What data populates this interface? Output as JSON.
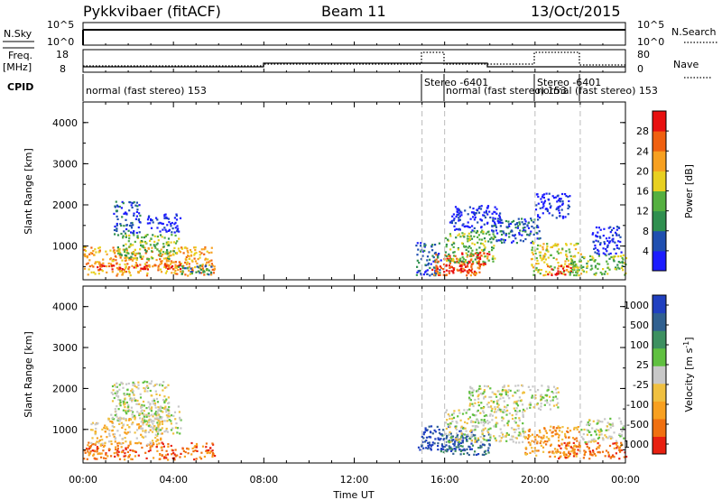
{
  "header": {
    "station": "Pykkvibaer (fitACF)",
    "beam": "Beam 11",
    "date": "13/Oct/2015"
  },
  "panels": {
    "sky": {
      "left_label": "N.Sky",
      "right_label": "N.Search",
      "left_ticks": [
        "10^5",
        "10^0"
      ],
      "right_ticks": [
        "10^5",
        "10^0"
      ]
    },
    "freq": {
      "left_label_line1": "Freq.",
      "left_label_line2": "[MHz]",
      "right_label": "Nave",
      "left_ticks": [
        "18",
        "8"
      ],
      "right_ticks": [
        "80",
        "0"
      ]
    },
    "cpid": {
      "label": "CPID",
      "segments": [
        {
          "text": "normal (fast stereo) 153"
        },
        {
          "text": "Stereo -6401"
        },
        {
          "text": "normal (fast stereo) 153"
        },
        {
          "text": "Stereo -6401"
        },
        {
          "text": "normal (fast stereo) 153"
        }
      ]
    }
  },
  "x_axis": {
    "label": "Time UT",
    "ticks": [
      "00:00",
      "04:00",
      "08:00",
      "12:00",
      "16:00",
      "20:00",
      "00:00"
    ]
  },
  "chart_data": [
    {
      "type": "heatmap",
      "name": "power",
      "ylabel": "Slant Range [km]",
      "yticks": [
        "1000",
        "2000",
        "3000",
        "4000"
      ],
      "ylim": [
        180,
        4500
      ],
      "xlim": [
        0,
        24
      ],
      "colorbar": {
        "label": "Power [dB]",
        "ticks": [
          "4",
          "8",
          "12",
          "16",
          "20",
          "24",
          "28"
        ],
        "colors": [
          "#1c1cff",
          "#1f4fb0",
          "#2f8f4f",
          "#55b040",
          "#e8d020",
          "#f7a020",
          "#f06010",
          "#e81010"
        ]
      },
      "blobs": [
        {
          "t0": 0.0,
          "t1": 5.8,
          "r0": 300,
          "r1": 1000,
          "level": 5
        },
        {
          "t0": 0.4,
          "t1": 4.5,
          "r0": 450,
          "r1": 600,
          "level": 7
        },
        {
          "t0": 1.5,
          "t1": 4.2,
          "r0": 700,
          "r1": 1300,
          "level": 3
        },
        {
          "t0": 1.3,
          "t1": 2.5,
          "r0": 1300,
          "r1": 2100,
          "level": 1
        },
        {
          "t0": 2.8,
          "t1": 4.3,
          "r0": 1350,
          "r1": 1800,
          "level": 0
        },
        {
          "t0": 4.2,
          "t1": 5.8,
          "r0": 300,
          "r1": 550,
          "level": 2
        },
        {
          "t0": 14.7,
          "t1": 15.8,
          "r0": 300,
          "r1": 1100,
          "level": 1
        },
        {
          "t0": 15.4,
          "t1": 17.6,
          "r0": 300,
          "r1": 850,
          "level": 6
        },
        {
          "t0": 15.6,
          "t1": 17.2,
          "r0": 400,
          "r1": 650,
          "level": 7
        },
        {
          "t0": 16.0,
          "t1": 18.2,
          "r0": 600,
          "r1": 1400,
          "level": 3
        },
        {
          "t0": 17.3,
          "t1": 18.0,
          "r0": 550,
          "r1": 900,
          "level": 6
        },
        {
          "t0": 16.2,
          "t1": 18.5,
          "r0": 1400,
          "r1": 2000,
          "level": 0
        },
        {
          "t0": 18.0,
          "t1": 20.2,
          "r0": 1100,
          "r1": 1700,
          "level": 1
        },
        {
          "t0": 20.0,
          "t1": 21.5,
          "r0": 1700,
          "r1": 2300,
          "level": 0
        },
        {
          "t0": 19.8,
          "t1": 22.0,
          "r0": 300,
          "r1": 1100,
          "level": 4
        },
        {
          "t0": 20.5,
          "t1": 21.6,
          "r0": 300,
          "r1": 550,
          "level": 7
        },
        {
          "t0": 21.5,
          "t1": 24.0,
          "r0": 300,
          "r1": 800,
          "level": 3
        },
        {
          "t0": 22.5,
          "t1": 23.8,
          "r0": 800,
          "r1": 1500,
          "level": 0
        }
      ]
    },
    {
      "type": "heatmap",
      "name": "velocity",
      "ylabel": "Slant Range [km]",
      "yticks": [
        "1000",
        "2000",
        "3000",
        "4000"
      ],
      "ylim": [
        180,
        4500
      ],
      "xlim": [
        0,
        24
      ],
      "colorbar": {
        "label": "Velocity [m s^-1]",
        "ticks": [
          "1000",
          "500",
          "100",
          "25",
          "-25",
          "-100",
          "-500",
          "-1000"
        ],
        "colors": [
          "#2040c0",
          "#306090",
          "#3d9060",
          "#60c040",
          "#c8c8c8",
          "#f0c040",
          "#f8a020",
          "#f07010",
          "#e82010"
        ]
      },
      "blobs": [
        {
          "t0": 0.0,
          "t1": 5.8,
          "r0": 280,
          "r1": 700,
          "level": 7
        },
        {
          "t0": 0.3,
          "t1": 3.5,
          "r0": 650,
          "r1": 1300,
          "level": 5
        },
        {
          "t0": 1.2,
          "t1": 3.8,
          "r0": 1200,
          "r1": 2200,
          "level": 4
        },
        {
          "t0": 2.5,
          "t1": 4.3,
          "r0": 900,
          "r1": 1600,
          "level": 4
        },
        {
          "t0": 14.8,
          "t1": 17.2,
          "r0": 500,
          "r1": 1100,
          "level": 0
        },
        {
          "t0": 15.8,
          "t1": 18.0,
          "r0": 400,
          "r1": 900,
          "level": 1
        },
        {
          "t0": 16.0,
          "t1": 19.5,
          "r0": 700,
          "r1": 1500,
          "level": 4
        },
        {
          "t0": 17.0,
          "t1": 21.0,
          "r0": 1500,
          "r1": 2100,
          "level": 4
        },
        {
          "t0": 19.5,
          "t1": 22.0,
          "r0": 350,
          "r1": 1100,
          "level": 6
        },
        {
          "t0": 21.0,
          "t1": 24.0,
          "r0": 300,
          "r1": 700,
          "level": 7
        },
        {
          "t0": 22.0,
          "t1": 23.9,
          "r0": 700,
          "r1": 1300,
          "level": 4
        }
      ]
    }
  ]
}
